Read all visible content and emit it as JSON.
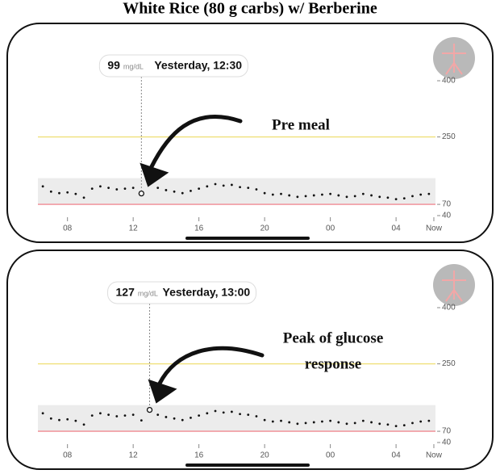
{
  "title": "White Rice (80 g carbs) w/ Berberine",
  "chart_data": [
    {
      "type": "scatter",
      "color": "#111111",
      "x": [
        6.5,
        7,
        7.5,
        8,
        8.5,
        9,
        9.5,
        10,
        10.5,
        11,
        11.5,
        12,
        12.5,
        13,
        13.5,
        14,
        14.5,
        15,
        15.5,
        16,
        16.5,
        17,
        17.5,
        18,
        18.5,
        19,
        19.5,
        20,
        20.5,
        21,
        21.5,
        22,
        22.5,
        23,
        23.5,
        24,
        24.5,
        25,
        25.5,
        26,
        26.5,
        27,
        27.5,
        28,
        28.5,
        29,
        29.5,
        30
      ],
      "values": [
        118,
        104,
        100,
        102,
        98,
        88,
        112,
        118,
        114,
        110,
        112,
        114,
        99,
        127,
        114,
        108,
        104,
        100,
        106,
        112,
        118,
        124,
        120,
        122,
        116,
        114,
        110,
        100,
        96,
        98,
        94,
        90,
        92,
        94,
        96,
        98,
        94,
        90,
        92,
        98,
        94,
        90,
        88,
        84,
        86,
        92,
        96,
        98
      ],
      "xlim": [
        6.2,
        30.4
      ],
      "xticks": [
        {
          "value": 8,
          "label": "08"
        },
        12,
        16,
        20,
        {
          "value": 24,
          "label": "00"
        },
        {
          "value": 28,
          "label": "04"
        },
        {
          "value": 30.3,
          "label": "Now"
        }
      ],
      "ylim": [
        40,
        400
      ],
      "yticks": [
        40,
        70,
        250,
        400
      ],
      "range_band": [
        70,
        140
      ],
      "high_line": 250,
      "low_line": 70,
      "tooltip": {
        "value": 99,
        "unit": "mg/dL",
        "time": "Yesterday, 12:30",
        "x": 12.5
      },
      "annotation": [
        "Pre meal"
      ]
    },
    {
      "type": "scatter",
      "color": "#111111",
      "x": [
        6.5,
        7,
        7.5,
        8,
        8.5,
        9,
        9.5,
        10,
        10.5,
        11,
        11.5,
        12,
        12.5,
        13,
        13.5,
        14,
        14.5,
        15,
        15.5,
        16,
        16.5,
        17,
        17.5,
        18,
        18.5,
        19,
        19.5,
        20,
        20.5,
        21,
        21.5,
        22,
        22.5,
        23,
        23.5,
        24,
        24.5,
        25,
        25.5,
        26,
        26.5,
        27,
        27.5,
        28,
        28.5,
        29,
        29.5,
        30
      ],
      "values": [
        118,
        104,
        100,
        102,
        98,
        88,
        112,
        118,
        114,
        110,
        112,
        114,
        99,
        127,
        114,
        108,
        104,
        100,
        106,
        112,
        118,
        124,
        120,
        122,
        116,
        114,
        110,
        100,
        96,
        98,
        94,
        90,
        92,
        94,
        96,
        98,
        94,
        90,
        92,
        98,
        94,
        90,
        88,
        84,
        86,
        92,
        96,
        98
      ],
      "xlim": [
        6.2,
        30.4
      ],
      "xticks": [
        {
          "value": 8,
          "label": "08"
        },
        12,
        16,
        20,
        {
          "value": 24,
          "label": "00"
        },
        {
          "value": 28,
          "label": "04"
        },
        {
          "value": 30.3,
          "label": "Now"
        }
      ],
      "ylim": [
        40,
        400
      ],
      "yticks": [
        40,
        70,
        250,
        400
      ],
      "range_band": [
        70,
        140
      ],
      "high_line": 250,
      "low_line": 70,
      "tooltip": {
        "value": 127,
        "unit": "mg/dL",
        "time": "Yesterday, 13:00",
        "x": 13
      },
      "annotation": [
        "Peak of glucose",
        "response"
      ]
    }
  ]
}
